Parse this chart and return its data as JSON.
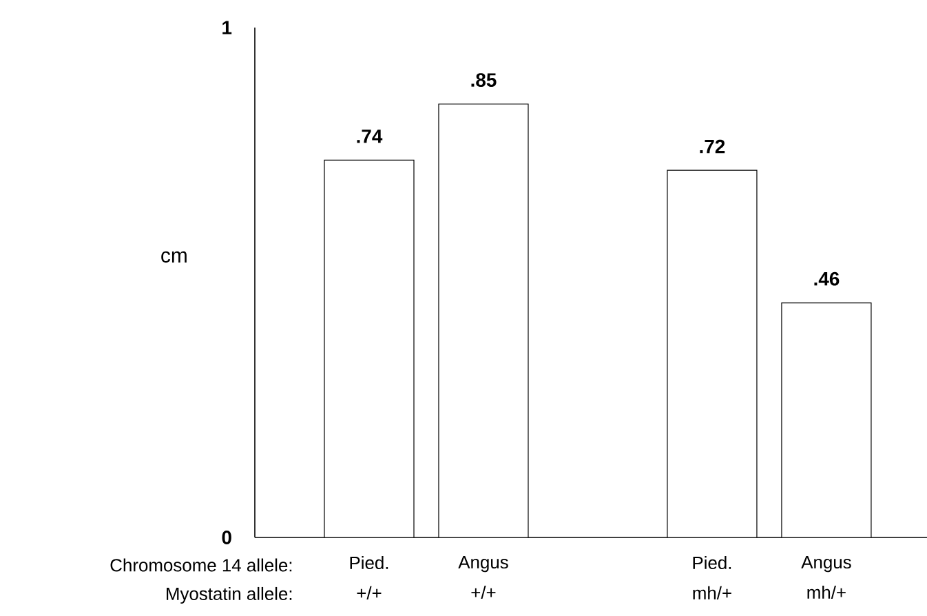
{
  "chart_data": {
    "type": "bar",
    "ylabel": "cm",
    "categories": [
      "Pied.\n+/+",
      "Angus\n+/+",
      null,
      "Pied.\nmh/+",
      "Angus\nmh/+"
    ],
    "values": [
      0.74,
      0.85,
      null,
      0.72,
      0.46
    ],
    "value_labels": [
      ".74",
      ".85",
      null,
      ".72",
      ".46"
    ],
    "color": "#ffffff",
    "ylim": [
      0,
      1
    ],
    "yticks": [
      0,
      1
    ],
    "annotations": [
      "Chromosome 14 allele:",
      "Myostatin allele:"
    ]
  }
}
